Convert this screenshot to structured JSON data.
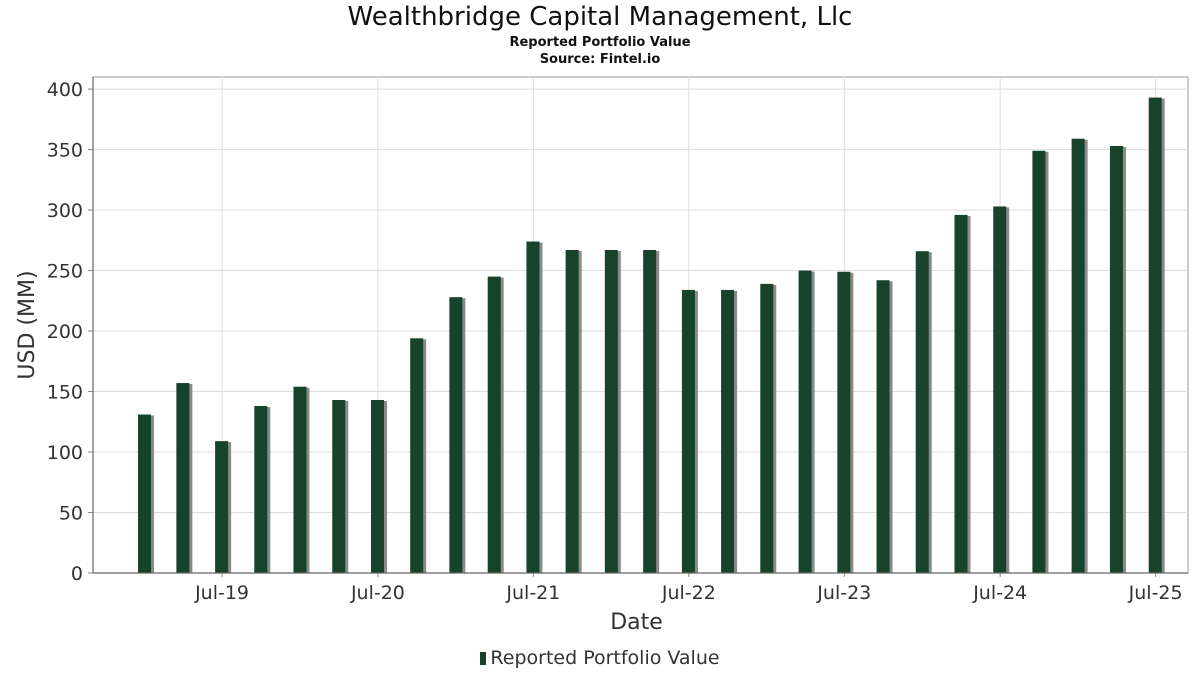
{
  "chart_data": {
    "type": "bar",
    "title": "Wealthbridge Capital Management, Llc",
    "subtitle": "Reported Portfolio Value",
    "source": "Source: Fintel.io",
    "xlabel": "Date",
    "ylabel": "USD (MM)",
    "ylim": [
      0,
      410
    ],
    "yticks": [
      0,
      50,
      100,
      150,
      200,
      250,
      300,
      350,
      400
    ],
    "x_tick_labels": [
      "Jul-19",
      "Jul-20",
      "Jul-21",
      "Jul-22",
      "Jul-23",
      "Jul-24",
      "Jul-25"
    ],
    "x_tick_dates": [
      "2019-07-01",
      "2020-07-01",
      "2021-07-01",
      "2022-07-01",
      "2023-07-01",
      "2024-07-01",
      "2025-07-01"
    ],
    "xlim": [
      "2018-09-01",
      "2025-09-15"
    ],
    "grid": true,
    "legend_position": "bottom-center",
    "colors": {
      "bar": "#17432a",
      "shadow": "#8a8a8a",
      "grid": "#dddddd",
      "axis": "#888888"
    },
    "series": [
      {
        "name": "Reported Portfolio Value",
        "x": [
          "2018-12-31",
          "2019-03-31",
          "2019-06-30",
          "2019-09-30",
          "2019-12-31",
          "2020-03-31",
          "2020-06-30",
          "2020-09-30",
          "2020-12-31",
          "2021-03-31",
          "2021-06-30",
          "2021-09-30",
          "2021-12-31",
          "2022-03-31",
          "2022-06-30",
          "2022-09-30",
          "2022-12-31",
          "2023-03-31",
          "2023-06-30",
          "2023-09-30",
          "2023-12-31",
          "2024-03-31",
          "2024-06-30",
          "2024-09-30",
          "2024-12-31",
          "2025-03-31",
          "2025-06-30"
        ],
        "values": [
          131,
          157,
          109,
          138,
          154,
          143,
          143,
          194,
          228,
          245,
          274,
          267,
          267,
          267,
          234,
          234,
          239,
          250,
          249,
          242,
          266,
          296,
          303,
          349,
          359,
          353,
          393
        ]
      }
    ]
  }
}
